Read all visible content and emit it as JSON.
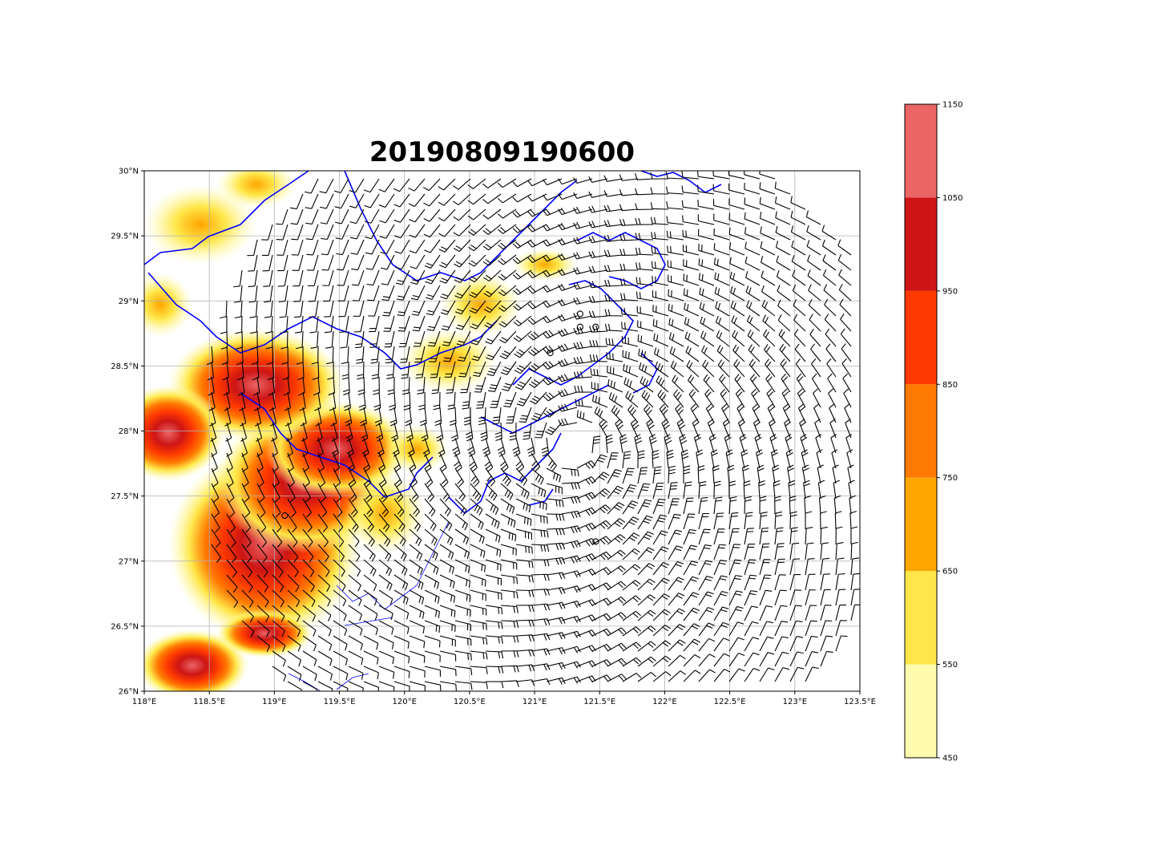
{
  "title": "20190809190600",
  "map": {
    "x_ticks": [
      "118°E",
      "118.5°E",
      "119°E",
      "119.5°E",
      "120°E",
      "120.5°E",
      "121°E",
      "121.5°E",
      "122°E",
      "122.5°E",
      "123°E",
      "123.5°E"
    ],
    "y_ticks": [
      "26°N",
      "26.5°N",
      "27°N",
      "27.5°N",
      "28°N",
      "28.5°N",
      "29°N",
      "29.5°N",
      "30°N"
    ],
    "lon_range": [
      118,
      123.5
    ],
    "lat_range": [
      26,
      30
    ],
    "grid": true,
    "coastline_color": "#0000ff",
    "wind_barb_color": "#000000",
    "typhoon_center": {
      "lon": 121.3,
      "lat": 27.9
    }
  },
  "colorbar": {
    "levels": [
      "450",
      "550",
      "650",
      "750",
      "850",
      "950",
      "1050",
      "1150"
    ],
    "colors": [
      "#fffcad",
      "#ffe74a",
      "#ffa500",
      "#ff7a00",
      "#ff3a00",
      "#cd1515",
      "#eb6565"
    ]
  }
}
